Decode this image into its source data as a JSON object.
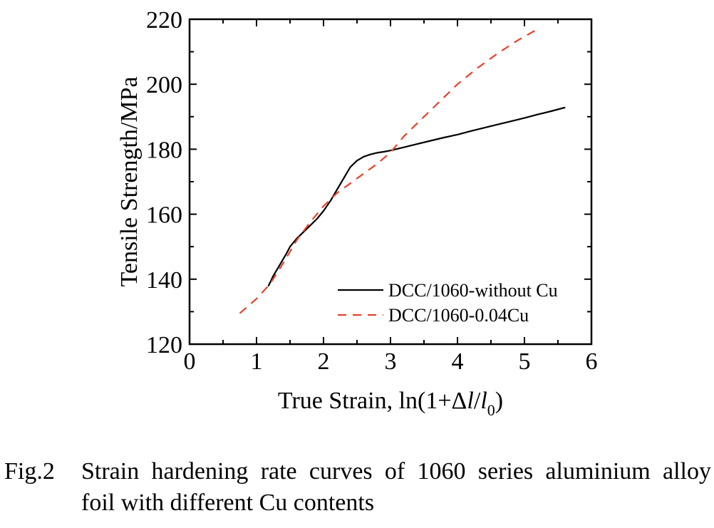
{
  "chart_data": {
    "type": "line",
    "xlabel": "True Strain, ln(1+Δl/l0)",
    "xlabel_parts": {
      "prefix": "True Strain, ln(1+Δ",
      "l": "l",
      "slash": "/",
      "l0": "l",
      "sub": "0",
      "suffix": ")"
    },
    "ylabel": "Tensile Strength/MPa",
    "xlim": [
      0,
      6
    ],
    "ylim": [
      120,
      220
    ],
    "xticks": [
      "0",
      "1",
      "2",
      "3",
      "4",
      "5",
      "6"
    ],
    "yticks": [
      "120",
      "140",
      "160",
      "180",
      "200",
      "220"
    ],
    "legend_position": "lower-right",
    "series": [
      {
        "name": "DCC/1060-without Cu",
        "style": "solid",
        "color": "#000000",
        "x": [
          1.18,
          1.25,
          1.35,
          1.45,
          1.5,
          1.6,
          1.7,
          1.8,
          1.9,
          2.0,
          2.1,
          2.2,
          2.3,
          2.4,
          2.5,
          2.6,
          2.7,
          2.8,
          2.9,
          3.0,
          3.2,
          3.4,
          3.6,
          3.8,
          4.0,
          4.2,
          4.4,
          4.6,
          4.8,
          5.0,
          5.2,
          5.4,
          5.6
        ],
        "y": [
          138,
          141,
          144.5,
          148,
          150,
          152.5,
          154.5,
          156.5,
          158.5,
          161,
          164,
          167.5,
          171,
          174.5,
          176.5,
          177.7,
          178.4,
          178.9,
          179.2,
          179.6,
          180.6,
          181.6,
          182.6,
          183.6,
          184.5,
          185.6,
          186.6,
          187.6,
          188.6,
          189.6,
          190.7,
          191.7,
          192.8
        ]
      },
      {
        "name": "DCC/1060-0.04Cu",
        "style": "dashed",
        "color": "#e8412c",
        "x": [
          0.75,
          1.0,
          1.2,
          1.4,
          1.6,
          1.8,
          2.0,
          2.2,
          2.4,
          2.6,
          2.8,
          3.0,
          3.2,
          3.5,
          3.8,
          4.0,
          4.3,
          4.6,
          4.9,
          5.2
        ],
        "y": [
          129.5,
          134,
          138.5,
          145,
          152,
          157.5,
          162.5,
          166.5,
          169.5,
          172.5,
          175.5,
          179,
          184,
          190,
          196,
          200,
          205,
          209.5,
          213.5,
          217
        ]
      }
    ]
  },
  "caption": {
    "number": "Fig.2",
    "line1": "Strain hardening rate curves of 1060 series aluminium alloy",
    "line2": "foil with different Cu contents"
  }
}
